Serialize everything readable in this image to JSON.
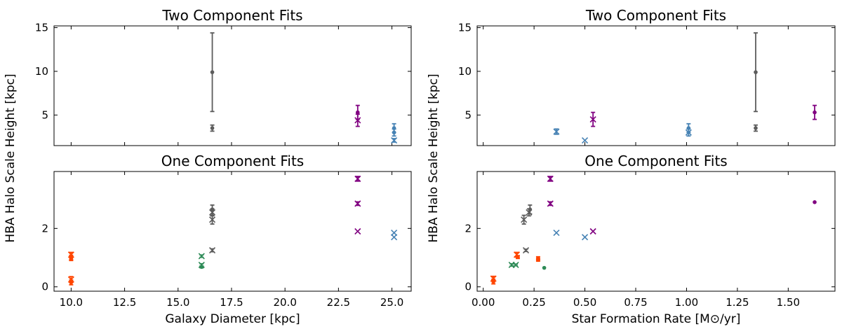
{
  "chart_data": [
    {
      "type": "scatter",
      "title": "Two Component Fits",
      "xlabel": "",
      "ylabel": "HBA Halo Scale Height [kpc]",
      "xlim": [
        9.2,
        25.9
      ],
      "ylim": [
        1.5,
        15.2
      ],
      "xticks": [
        10.0,
        12.5,
        15.0,
        17.5,
        20.0,
        22.5,
        25.0
      ],
      "xtick_labels": [],
      "yticks": [
        5,
        10,
        15
      ],
      "ytick_labels": [
        "5",
        "10",
        "15"
      ],
      "points": [
        {
          "x": 16.6,
          "y": 9.9,
          "err": 4.5,
          "color": "#5c5c5c",
          "marker": "dot"
        },
        {
          "x": 16.6,
          "y": 3.5,
          "err": 0.35,
          "color": "#5c5c5c",
          "marker": "dot"
        },
        {
          "x": 23.4,
          "y": 5.3,
          "err": 0.8,
          "color": "#800080",
          "marker": "dot"
        },
        {
          "x": 23.4,
          "y": 4.4,
          "err": 0.7,
          "color": "#800080",
          "marker": "x"
        },
        {
          "x": 25.1,
          "y": 3.5,
          "err": 0.5,
          "color": "#4682b4",
          "marker": "dot"
        },
        {
          "x": 25.1,
          "y": 3.0,
          "err": 0.4,
          "color": "#4682b4",
          "marker": "dot"
        },
        {
          "x": 25.1,
          "y": 2.1,
          "err": 0.2,
          "color": "#4682b4",
          "marker": "x"
        }
      ]
    },
    {
      "type": "scatter",
      "title": "One Component Fits",
      "xlabel": "Galaxy Diameter [kpc]",
      "ylabel": "HBA Halo Scale Height [kpc]",
      "xlim": [
        9.2,
        25.9
      ],
      "ylim": [
        -0.15,
        3.95
      ],
      "xticks": [
        10.0,
        12.5,
        15.0,
        17.5,
        20.0,
        22.5,
        25.0
      ],
      "xtick_labels": [
        "10.0",
        "12.5",
        "15.0",
        "17.5",
        "20.0",
        "22.5",
        "25.0"
      ],
      "yticks": [
        0,
        2
      ],
      "ytick_labels": [
        "0",
        "2"
      ],
      "points": [
        {
          "x": 10.0,
          "y": 1.1,
          "err": 0.08,
          "color": "#ff4500",
          "marker": "x"
        },
        {
          "x": 10.0,
          "y": 1.0,
          "err": 0.08,
          "color": "#ff4500",
          "marker": "dot"
        },
        {
          "x": 10.0,
          "y": 0.95,
          "err": 0.05,
          "color": "#ff4500",
          "marker": "dot"
        },
        {
          "x": 10.0,
          "y": 0.25,
          "err": 0.1,
          "color": "#ff4500",
          "marker": "x"
        },
        {
          "x": 10.0,
          "y": 0.15,
          "err": 0.08,
          "color": "#ff4500",
          "marker": "dot"
        },
        {
          "x": 16.1,
          "y": 1.05,
          "err": 0.04,
          "color": "#2e8b57",
          "marker": "x"
        },
        {
          "x": 16.1,
          "y": 0.75,
          "err": 0.04,
          "color": "#2e8b57",
          "marker": "x"
        },
        {
          "x": 16.1,
          "y": 0.68,
          "err": 0.03,
          "color": "#2e8b57",
          "marker": "dot"
        },
        {
          "x": 16.6,
          "y": 2.65,
          "err": 0.15,
          "color": "#5c5c5c",
          "marker": "dot"
        },
        {
          "x": 16.6,
          "y": 2.55,
          "err": 0.12,
          "color": "#5c5c5c",
          "marker": "x"
        },
        {
          "x": 16.6,
          "y": 2.3,
          "err": 0.15,
          "color": "#5c5c5c",
          "marker": "x"
        },
        {
          "x": 16.6,
          "y": 1.25,
          "err": 0.05,
          "color": "#5c5c5c",
          "marker": "x"
        },
        {
          "x": 23.4,
          "y": 3.7,
          "err": 0.08,
          "color": "#800080",
          "marker": "x"
        },
        {
          "x": 23.4,
          "y": 2.85,
          "err": 0.06,
          "color": "#800080",
          "marker": "x"
        },
        {
          "x": 23.4,
          "y": 1.9,
          "err": 0.0,
          "color": "#800080",
          "marker": "x"
        },
        {
          "x": 25.1,
          "y": 1.85,
          "err": 0.0,
          "color": "#4682b4",
          "marker": "x"
        },
        {
          "x": 25.1,
          "y": 1.7,
          "err": 0.0,
          "color": "#4682b4",
          "marker": "x"
        }
      ]
    },
    {
      "type": "scatter",
      "title": "Two Component Fits",
      "xlabel": "",
      "ylabel": "HBA Halo Scale Height [kpc]",
      "xlim": [
        -0.03,
        1.73
      ],
      "ylim": [
        1.5,
        15.2
      ],
      "xticks": [
        0.0,
        0.25,
        0.5,
        0.75,
        1.0,
        1.25,
        1.5
      ],
      "xtick_labels": [],
      "yticks": [
        5,
        10,
        15
      ],
      "ytick_labels": [
        "5",
        "10",
        "15"
      ],
      "points": [
        {
          "x": 0.36,
          "y": 3.1,
          "err": 0.3,
          "color": "#4682b4",
          "marker": "x"
        },
        {
          "x": 0.5,
          "y": 2.1,
          "err": 0.0,
          "color": "#4682b4",
          "marker": "x"
        },
        {
          "x": 0.54,
          "y": 4.5,
          "err": 0.8,
          "color": "#800080",
          "marker": "x"
        },
        {
          "x": 1.01,
          "y": 3.5,
          "err": 0.5,
          "color": "#4682b4",
          "marker": "dot"
        },
        {
          "x": 1.01,
          "y": 3.0,
          "err": 0.4,
          "color": "#4682b4",
          "marker": "x"
        },
        {
          "x": 1.34,
          "y": 9.9,
          "err": 4.5,
          "color": "#5c5c5c",
          "marker": "dot"
        },
        {
          "x": 1.34,
          "y": 3.5,
          "err": 0.35,
          "color": "#5c5c5c",
          "marker": "dot"
        },
        {
          "x": 1.63,
          "y": 5.3,
          "err": 0.8,
          "color": "#800080",
          "marker": "dot"
        }
      ]
    },
    {
      "type": "scatter",
      "title": "One Component Fits",
      "xlabel": "Star Formation Rate [M⊙/yr]",
      "ylabel": "HBA Halo Scale Height [kpc]",
      "xlim": [
        -0.03,
        1.73
      ],
      "ylim": [
        -0.15,
        3.95
      ],
      "xticks": [
        0.0,
        0.25,
        0.5,
        0.75,
        1.0,
        1.25,
        1.5
      ],
      "xtick_labels": [
        "0.00",
        "0.25",
        "0.50",
        "0.75",
        "1.00",
        "1.25",
        "1.50"
      ],
      "yticks": [
        0,
        2
      ],
      "ytick_labels": [
        "0",
        "2"
      ],
      "points": [
        {
          "x": 0.05,
          "y": 0.28,
          "err": 0.08,
          "color": "#ff4500",
          "marker": "x"
        },
        {
          "x": 0.05,
          "y": 0.18,
          "err": 0.08,
          "color": "#ff4500",
          "marker": "dot"
        },
        {
          "x": 0.14,
          "y": 0.75,
          "err": 0.04,
          "color": "#2e8b57",
          "marker": "x"
        },
        {
          "x": 0.16,
          "y": 0.75,
          "err": 0.03,
          "color": "#2e8b57",
          "marker": "x"
        },
        {
          "x": 0.165,
          "y": 1.1,
          "err": 0.08,
          "color": "#ff4500",
          "marker": "x"
        },
        {
          "x": 0.17,
          "y": 1.02,
          "err": 0.05,
          "color": "#ff4500",
          "marker": "dot"
        },
        {
          "x": 0.2,
          "y": 2.3,
          "err": 0.15,
          "color": "#5c5c5c",
          "marker": "x"
        },
        {
          "x": 0.21,
          "y": 1.25,
          "err": 0.04,
          "color": "#5c5c5c",
          "marker": "x"
        },
        {
          "x": 0.225,
          "y": 2.55,
          "err": 0.12,
          "color": "#5c5c5c",
          "marker": "x"
        },
        {
          "x": 0.23,
          "y": 2.65,
          "err": 0.15,
          "color": "#5c5c5c",
          "marker": "dot"
        },
        {
          "x": 0.27,
          "y": 0.98,
          "err": 0.05,
          "color": "#ff4500",
          "marker": "dot"
        },
        {
          "x": 0.27,
          "y": 0.92,
          "err": 0.04,
          "color": "#ff4500",
          "marker": "dot"
        },
        {
          "x": 0.3,
          "y": 0.65,
          "err": 0.0,
          "color": "#2e8b57",
          "marker": "dot"
        },
        {
          "x": 0.33,
          "y": 3.7,
          "err": 0.08,
          "color": "#800080",
          "marker": "x"
        },
        {
          "x": 0.33,
          "y": 2.85,
          "err": 0.06,
          "color": "#800080",
          "marker": "x"
        },
        {
          "x": 0.36,
          "y": 1.85,
          "err": 0.0,
          "color": "#4682b4",
          "marker": "x"
        },
        {
          "x": 0.5,
          "y": 1.7,
          "err": 0.0,
          "color": "#4682b4",
          "marker": "x"
        },
        {
          "x": 0.54,
          "y": 1.9,
          "err": 0.0,
          "color": "#800080",
          "marker": "x"
        },
        {
          "x": 1.63,
          "y": 2.9,
          "err": 0.0,
          "color": "#800080",
          "marker": "dot"
        }
      ]
    }
  ]
}
